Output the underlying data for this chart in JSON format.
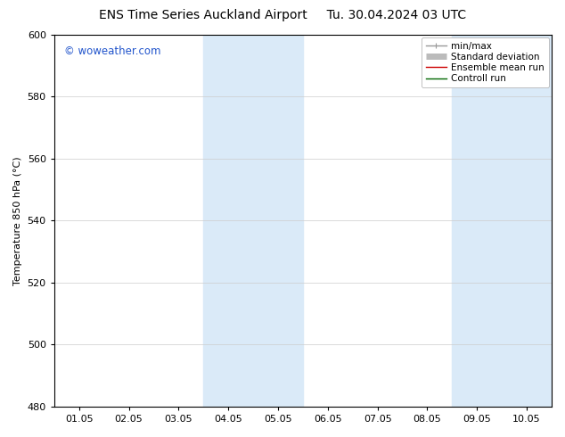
{
  "title": "ENS Time Series Auckland Airport     Tu. 30.04.2024 03 UTC",
  "ylabel": "Temperature 850 hPa (°C)",
  "ylim": [
    480,
    600
  ],
  "yticks": [
    480,
    500,
    520,
    540,
    560,
    580,
    600
  ],
  "xtick_labels": [
    "01.05",
    "02.05",
    "03.05",
    "04.05",
    "05.05",
    "06.05",
    "07.05",
    "08.05",
    "09.05",
    "10.05"
  ],
  "shaded_bands": [
    {
      "xstart": 3,
      "xend": 5,
      "color": "#daeaf8"
    },
    {
      "xstart": 8,
      "xend": 10,
      "color": "#daeaf8"
    }
  ],
  "watermark_text": "© woweather.com",
  "watermark_color": "#2255cc",
  "legend_entries": [
    {
      "label": "min/max",
      "color": "#999999",
      "lw": 1.0
    },
    {
      "label": "Standard deviation",
      "color": "#bbbbbb",
      "lw": 5
    },
    {
      "label": "Ensemble mean run",
      "color": "#cc0000",
      "lw": 1.0
    },
    {
      "label": "Controll run",
      "color": "#006600",
      "lw": 1.0
    }
  ],
  "bg_color": "#ffffff",
  "plot_bg_color": "#ffffff",
  "title_fontsize": 10,
  "axis_label_fontsize": 8,
  "tick_fontsize": 8,
  "legend_fontsize": 7.5
}
